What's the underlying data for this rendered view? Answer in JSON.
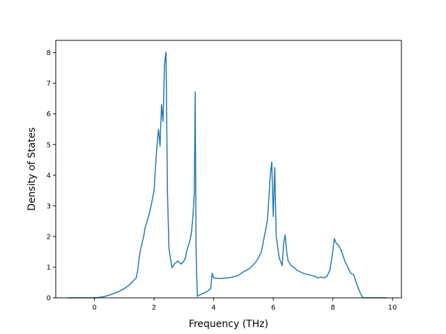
{
  "chart_data": {
    "type": "line",
    "xlabel": "Frequency (THz)",
    "ylabel": "Density of States",
    "xlim": [
      -1.3,
      10.3
    ],
    "ylim": [
      0,
      8.4
    ],
    "xticks": [
      0,
      2,
      4,
      6,
      8,
      10
    ],
    "yticks": [
      0,
      1,
      2,
      3,
      4,
      5,
      6,
      7,
      8
    ],
    "grid": false,
    "line_color": "#1f77b4",
    "series": [
      {
        "x": [
          -0.9,
          -0.5,
          0.0,
          0.2,
          0.4,
          0.6,
          0.8,
          1.0,
          1.1,
          1.2,
          1.3,
          1.4,
          1.45,
          1.5,
          1.55,
          1.6,
          1.65,
          1.7,
          1.8,
          1.9,
          1.95,
          2.0,
          2.05,
          2.1,
          2.15,
          2.2,
          2.25,
          2.3,
          2.35,
          2.4,
          2.45,
          2.5,
          2.6,
          2.7,
          2.8,
          2.9,
          3.0,
          3.05,
          3.1,
          3.15,
          3.2,
          3.25,
          3.3,
          3.35,
          3.38,
          3.41,
          3.45,
          3.5,
          3.6,
          3.7,
          3.8,
          3.9,
          3.95,
          4.0,
          4.2,
          4.5,
          4.8,
          4.9,
          5.0,
          5.2,
          5.4,
          5.5,
          5.6,
          5.7,
          5.8,
          5.85,
          5.9,
          5.95,
          6.0,
          6.05,
          6.1,
          6.2,
          6.3,
          6.35,
          6.4,
          6.45,
          6.5,
          6.6,
          6.7,
          6.8,
          7.0,
          7.2,
          7.4,
          7.5,
          7.6,
          7.7,
          7.8,
          7.9,
          7.95,
          8.0,
          8.05,
          8.1,
          8.2,
          8.3,
          8.4,
          8.5,
          8.6,
          8.7,
          8.8,
          8.9,
          9.0,
          9.5,
          9.8
        ],
        "y": [
          0.0,
          0.0,
          0.0,
          0.02,
          0.06,
          0.12,
          0.2,
          0.3,
          0.37,
          0.45,
          0.55,
          0.65,
          0.9,
          1.3,
          1.6,
          1.8,
          2.0,
          2.3,
          2.6,
          3.0,
          3.25,
          3.5,
          4.3,
          5.0,
          5.5,
          4.95,
          6.3,
          5.75,
          7.6,
          8.02,
          3.4,
          1.6,
          0.98,
          1.12,
          1.2,
          1.1,
          1.2,
          1.3,
          1.55,
          1.7,
          1.85,
          2.1,
          2.6,
          3.4,
          6.72,
          1.5,
          0.05,
          0.08,
          0.12,
          0.17,
          0.22,
          0.3,
          0.8,
          0.65,
          0.63,
          0.65,
          0.72,
          0.78,
          0.85,
          0.95,
          1.15,
          1.3,
          1.5,
          2.0,
          2.5,
          3.2,
          4.0,
          4.43,
          2.65,
          4.25,
          2.0,
          1.3,
          1.05,
          1.8,
          2.05,
          1.5,
          1.2,
          1.05,
          0.98,
          0.9,
          0.8,
          0.75,
          0.7,
          0.65,
          0.68,
          0.65,
          0.7,
          0.9,
          1.2,
          1.55,
          1.93,
          1.8,
          1.7,
          1.5,
          1.2,
          1.0,
          0.8,
          0.75,
          0.45,
          0.2,
          0.0,
          0.0,
          0.0
        ]
      }
    ]
  }
}
